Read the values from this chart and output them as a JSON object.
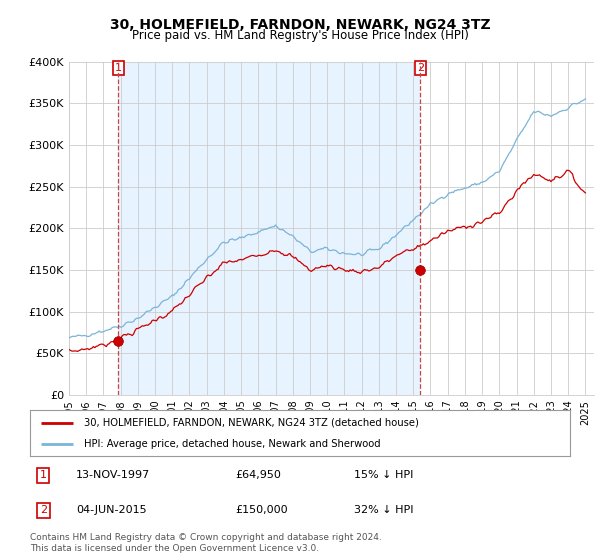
{
  "title": "30, HOLMEFIELD, FARNDON, NEWARK, NG24 3TZ",
  "subtitle": "Price paid vs. HM Land Registry's House Price Index (HPI)",
  "title_fontsize": 10,
  "subtitle_fontsize": 8.5,
  "ylim": [
    0,
    400000
  ],
  "yticks": [
    0,
    50000,
    100000,
    150000,
    200000,
    250000,
    300000,
    350000,
    400000
  ],
  "xlim_start": 1995.0,
  "xlim_end": 2025.5,
  "hpi_color": "#7ab4d8",
  "price_color": "#cc0000",
  "shade_color": "#ddeeff",
  "vline_color": "#cc4444",
  "marker1_x": 1997.87,
  "marker1_price": 64950,
  "marker2_x": 2015.42,
  "marker2_price": 150000,
  "legend_line1": "30, HOLMEFIELD, FARNDON, NEWARK, NG24 3TZ (detached house)",
  "legend_line2": "HPI: Average price, detached house, Newark and Sherwood",
  "table_row1": [
    "1",
    "13-NOV-1997",
    "£64,950",
    "15% ↓ HPI"
  ],
  "table_row2": [
    "2",
    "04-JUN-2015",
    "£150,000",
    "32% ↓ HPI"
  ],
  "footnote": "Contains HM Land Registry data © Crown copyright and database right 2024.\nThis data is licensed under the Open Government Licence v3.0.",
  "bg_color": "#ffffff",
  "grid_color": "#cccccc"
}
